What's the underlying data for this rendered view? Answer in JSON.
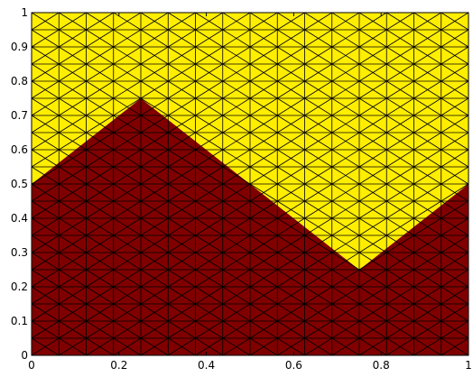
{
  "chart_data": {
    "type": "area",
    "title": "",
    "xlabel": "",
    "ylabel": "",
    "xlim": [
      0,
      1
    ],
    "ylim": [
      0,
      1
    ],
    "x_ticks": [
      0,
      0.2,
      0.4,
      0.6,
      0.8,
      1
    ],
    "x_tick_labels": [
      "0",
      "0.2",
      "0.4",
      "0.6",
      "0.8",
      "1"
    ],
    "y_ticks": [
      0,
      0.1,
      0.2,
      0.3,
      0.4,
      0.5,
      0.6,
      0.7,
      0.8,
      0.9,
      1
    ],
    "y_tick_labels": [
      "0",
      "0.1",
      "0.2",
      "0.3",
      "0.4",
      "0.5",
      "0.6",
      "0.7",
      "0.8",
      "0.9",
      "1"
    ],
    "mesh": {
      "x_divisions": 16,
      "y_divisions": 20,
      "cell_diagonals": "both"
    },
    "regions": [
      {
        "color": "#800000",
        "boundary": [
          [
            0,
            0
          ],
          [
            1,
            0
          ],
          [
            1,
            0.5
          ],
          [
            0.75,
            0.25
          ],
          [
            0.25,
            0.75
          ],
          [
            0,
            0.5
          ]
        ]
      },
      {
        "color": "#FFEE00",
        "boundary": [
          [
            0,
            0.5
          ],
          [
            0.25,
            0.75
          ],
          [
            0.75,
            0.25
          ],
          [
            1,
            0.5
          ],
          [
            1,
            1
          ],
          [
            0,
            1
          ]
        ]
      }
    ],
    "grid": false
  }
}
